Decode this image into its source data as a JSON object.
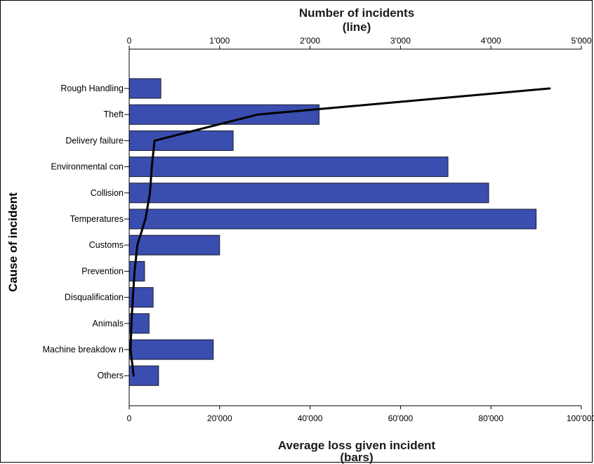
{
  "chart_data": {
    "type": "bar",
    "orientation": "horizontal",
    "categories": [
      "Rough Handling",
      "Theft",
      "Delivery failure",
      "Environmental con",
      "Collision",
      "Temperatures",
      "Customs",
      "Prevention",
      "Disqualification",
      "Animals",
      "Machine breakdow n",
      "Others"
    ],
    "series": [
      {
        "name": "bars",
        "type": "bar",
        "axis": "bottom",
        "color": "#3a4eb0",
        "values": [
          7000,
          42000,
          23000,
          70500,
          79500,
          90000,
          20000,
          3400,
          5300,
          4400,
          18600,
          6500
        ]
      },
      {
        "name": "line",
        "type": "line",
        "axis": "top",
        "color": "#000000",
        "values": [
          4650,
          1420,
          280,
          250,
          230,
          180,
          90,
          60,
          40,
          25,
          15,
          50
        ]
      }
    ],
    "top_axis": {
      "title_line1": "Number of incidents",
      "title_line2": "(line)",
      "range": [
        0,
        5000
      ],
      "ticks": [
        0,
        1000,
        2000,
        3000,
        4000,
        5000
      ],
      "tick_labels": [
        "0",
        "1'000",
        "2'000",
        "3'000",
        "4'000",
        "5'000"
      ]
    },
    "bottom_axis": {
      "title_line1": "Average loss given incident",
      "title_line2": "(bars)",
      "range": [
        0,
        100000
      ],
      "ticks": [
        0,
        20000,
        40000,
        60000,
        80000,
        100000
      ],
      "tick_labels": [
        "0",
        "20'000",
        "40'000",
        "60'000",
        "80'000",
        "100'000"
      ]
    },
    "ylabel": "Cause of incident",
    "grid": false,
    "legend": "none"
  }
}
